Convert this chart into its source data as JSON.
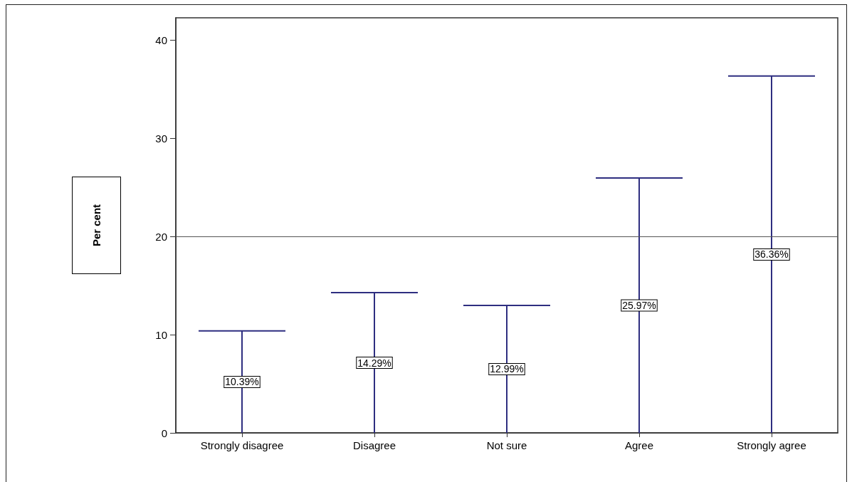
{
  "chart_data": {
    "type": "bar",
    "ylabel": "Per cent",
    "categories": [
      "Strongly disagree",
      "Disagree",
      "Not sure",
      "Agree",
      "Strongly agree"
    ],
    "values": [
      10.39,
      14.29,
      12.99,
      25.97,
      36.36
    ],
    "value_labels": [
      "10.39%",
      "14.29%",
      "12.99%",
      "25.97%",
      "36.36%"
    ],
    "color": "#2e2e80",
    "ylim": [
      0,
      42.3
    ],
    "yticks": [
      0,
      10,
      20,
      30,
      40
    ],
    "ref_lines": [
      {
        "axis": "y",
        "value": 20,
        "color": "#555555"
      }
    ],
    "grid": false
  }
}
